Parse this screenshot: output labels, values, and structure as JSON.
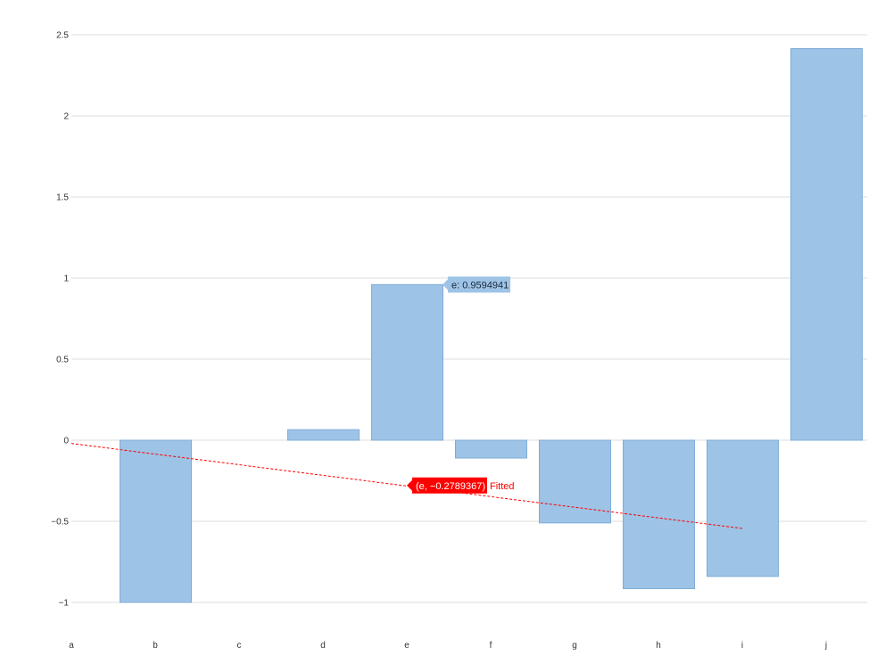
{
  "chart_data": {
    "type": "bar",
    "title": "",
    "xlabel": "",
    "ylabel": "",
    "categories": [
      "a",
      "b",
      "c",
      "d",
      "e",
      "f",
      "g",
      "h",
      "i",
      "j"
    ],
    "series": [
      {
        "values": [
          0,
          -1.0,
          0,
          0.065,
          0.9594941,
          -0.11,
          -0.51,
          -0.915,
          -0.84,
          2.415
        ],
        "color": "#9dc3e6",
        "stroke": "#7eaed8"
      }
    ],
    "y_ticks": [
      "2.5",
      "2",
      "1.5",
      "1",
      "0.5",
      "0",
      "−0.5",
      "−1"
    ],
    "y_tick_values": [
      2.5,
      2,
      1.5,
      1,
      0.5,
      0,
      -0.5,
      -1
    ],
    "ylim": [
      -1.1,
      2.6
    ],
    "grid": true,
    "trendline": {
      "name": "Fitted",
      "x_start": "a",
      "x_end": "i",
      "y_start": -0.02,
      "y_end": -0.545,
      "color": "#ff0000"
    },
    "annotations": [
      {
        "text": "e: 0.9594941",
        "category": "e",
        "value": 0.9594941,
        "color": "#9dc3e6"
      },
      {
        "text": "(e, −0.2789367)",
        "category": "e",
        "value": -0.2789367,
        "color": "#ff0000",
        "suffix": "Fitted"
      }
    ]
  }
}
